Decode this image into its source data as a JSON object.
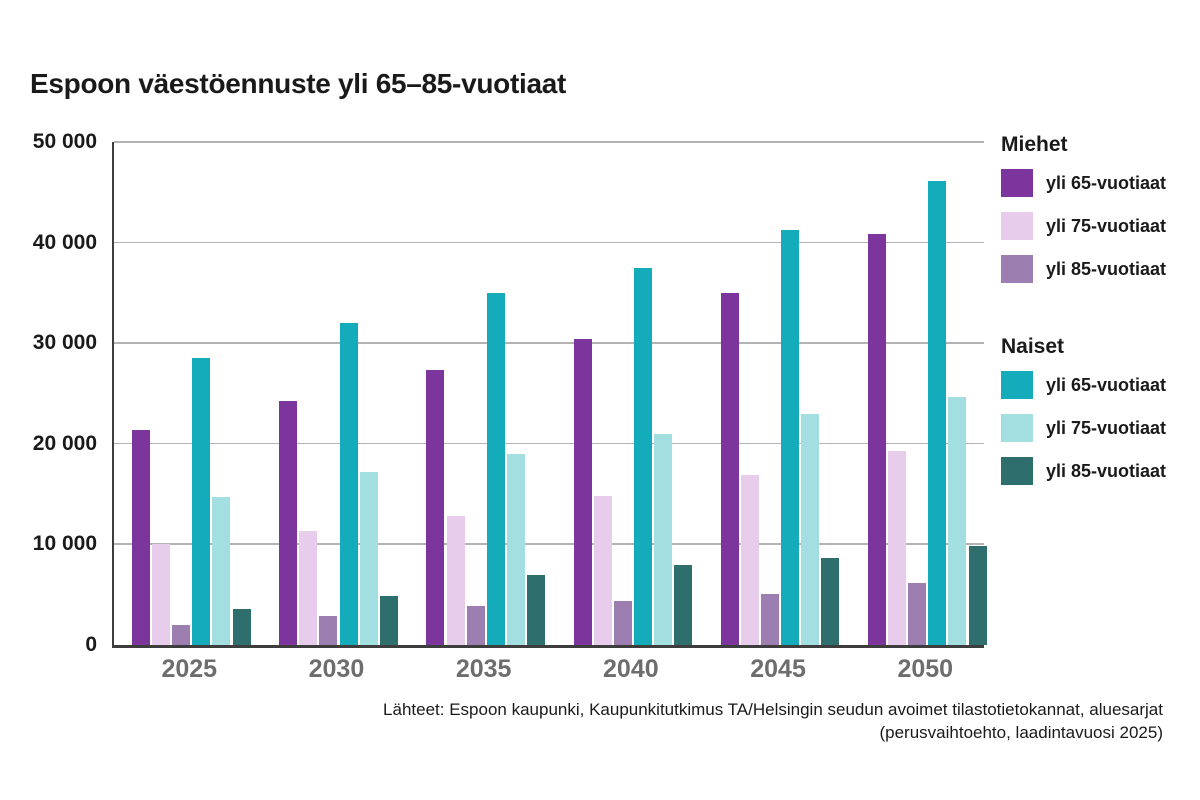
{
  "title": "Espoon väestöennuste yli 65–85-vuotiaat",
  "chart_data": {
    "type": "bar",
    "categories": [
      "2025",
      "2030",
      "2035",
      "2040",
      "2045",
      "2050"
    ],
    "series": [
      {
        "group": "Miehet",
        "key": "miehet-65",
        "name": "yli 65-vuotiaat",
        "color": "#7B359C",
        "values": [
          21400,
          24300,
          27300,
          30400,
          35000,
          40900
        ]
      },
      {
        "group": "Miehet",
        "key": "miehet-75",
        "name": "yli 75-vuotiaat",
        "color": "#E7CCEB",
        "values": [
          10000,
          11300,
          12800,
          14800,
          16900,
          19300
        ]
      },
      {
        "group": "Miehet",
        "key": "miehet-85",
        "name": "yli 85-vuotiaat",
        "color": "#9C7EB0",
        "values": [
          2000,
          2900,
          3900,
          4400,
          5100,
          6200
        ]
      },
      {
        "group": "Naiset",
        "key": "naiset-65",
        "name": "yli 65-vuotiaat",
        "color": "#14ACBA",
        "values": [
          28500,
          32000,
          35000,
          37500,
          41300,
          46100
        ]
      },
      {
        "group": "Naiset",
        "key": "naiset-75",
        "name": "yli 75-vuotiaat",
        "color": "#A3DFE1",
        "values": [
          14700,
          17200,
          19000,
          21000,
          23000,
          24700
        ]
      },
      {
        "group": "Naiset",
        "key": "naiset-85",
        "name": "yli 85-vuotiaat",
        "color": "#2E6F6D",
        "values": [
          3600,
          4900,
          7000,
          8000,
          8600,
          9800
        ]
      }
    ],
    "ylim": [
      0,
      50000
    ],
    "yticks": [
      {
        "label": "0",
        "value": 0
      },
      {
        "label": "10 000",
        "value": 10000
      },
      {
        "label": "20 000",
        "value": 20000
      },
      {
        "label": "30 000",
        "value": 30000
      },
      {
        "label": "40 000",
        "value": 40000
      },
      {
        "label": "50 000",
        "value": 50000
      }
    ],
    "grid": true,
    "legend_position": "right"
  },
  "legend": {
    "sections": [
      {
        "heading": "Miehet",
        "items": [
          {
            "label": "yli 65-vuotiaat",
            "color": "#7B359C"
          },
          {
            "label": "yli 75-vuotiaat",
            "color": "#E7CCEB"
          },
          {
            "label": "yli 85-vuotiaat",
            "color": "#9C7EB0"
          }
        ]
      },
      {
        "heading": "Naiset",
        "items": [
          {
            "label": "yli 65-vuotiaat",
            "color": "#14ACBA"
          },
          {
            "label": "yli 75-vuotiaat",
            "color": "#A3DFE1"
          },
          {
            "label": "yli 85-vuotiaat",
            "color": "#2E6F6D"
          }
        ]
      }
    ]
  },
  "source": {
    "line1": "Lähteet: Espoon kaupunki, Kaupunkitutkimus TA/Helsingin seudun avoimet tilastotietokannat, aluesarjat",
    "line2": "(perusvaihtoehto, laadintavuosi 2025)"
  },
  "colors": {
    "axis": "#3d3d3d",
    "gridline": "#b3b3b3",
    "year_label": "#6d6d6d",
    "text": "#1a1a1a",
    "background": "#ffffff"
  }
}
